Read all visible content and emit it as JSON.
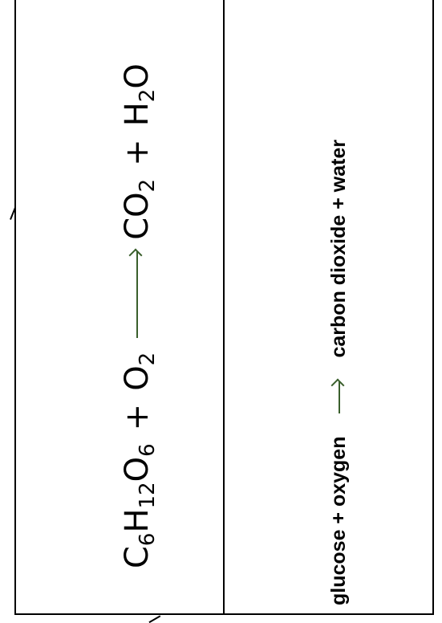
{
  "equation": {
    "reactant1": {
      "symbol_c": "C",
      "sub_c": "6",
      "symbol_h": "H",
      "sub_h": "12",
      "symbol_o": "O",
      "sub_o": "6"
    },
    "plus1": "+",
    "reactant2": {
      "symbol": "O",
      "sub": "2"
    },
    "product1": {
      "symbol": "CO",
      "sub": "2"
    },
    "plus2": "+",
    "product2": {
      "symbol_h": "H",
      "sub_h": "2",
      "symbol_o": "O"
    }
  },
  "word_equation": {
    "left": "glucose + oxygen",
    "right": "carbon dioxide + water"
  },
  "colors": {
    "arrow": "#3a5f2c",
    "border": "#000000"
  }
}
